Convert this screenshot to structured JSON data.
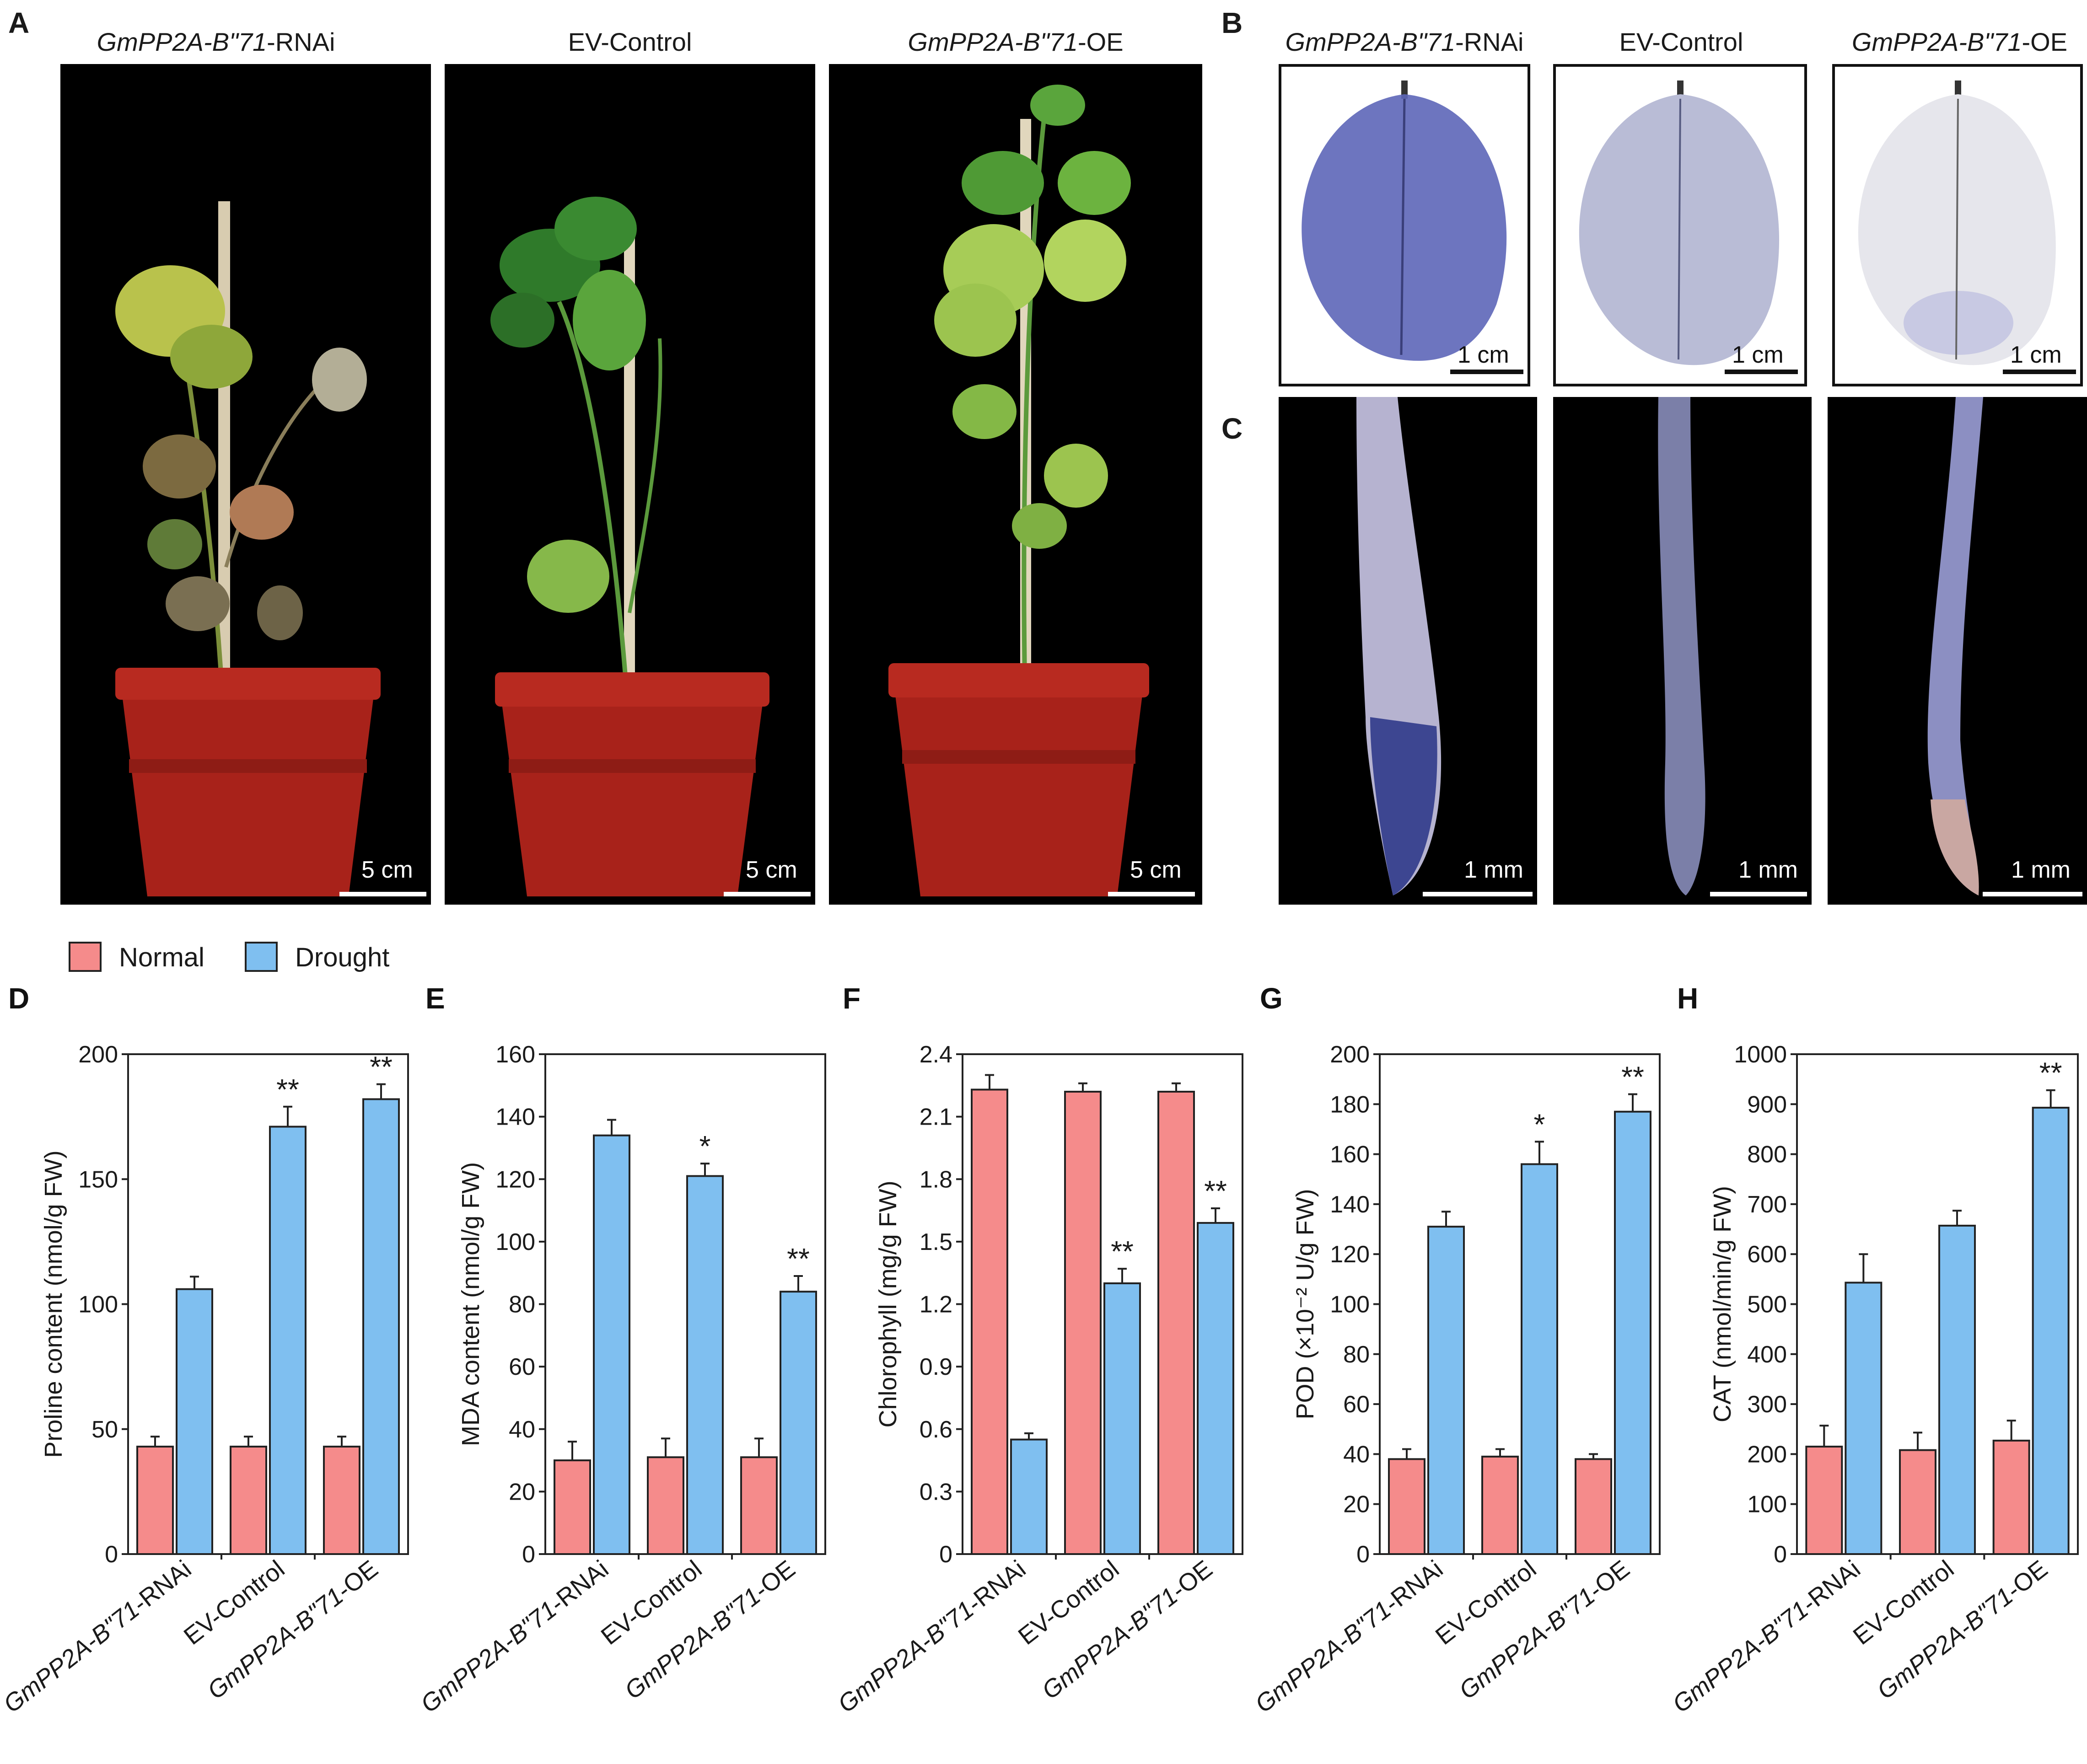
{
  "figure": {
    "photo_panels": [
      {
        "letter": "A",
        "titles": [
          "GmPP2A-B\"71-RNAi",
          "EV-Control",
          "GmPP2A-B\"71-OE"
        ],
        "scale_label": "5 cm"
      },
      {
        "letter": "B",
        "titles": [
          "GmPP2A-B\"71-RNAi",
          "EV-Control",
          "GmPP2A-B\"71-OE"
        ],
        "scale_label": "1 cm"
      },
      {
        "letter": "C",
        "scale_label": "1 mm"
      }
    ],
    "legend": {
      "normal": "Normal",
      "drought": "Drought"
    },
    "colors": {
      "normal": "#f58b8b",
      "drought": "#7fbff0",
      "pot": "#a8221a",
      "leaf_green": "#3f8f2f",
      "stain_blue": "#5d66b8"
    }
  },
  "chart_data": [
    {
      "letter": "D",
      "type": "bar",
      "ylabel": "Proline content (nmol/g FW)",
      "ylim": [
        0,
        200
      ],
      "yticks": [
        "0",
        "50",
        "100",
        "150",
        "200"
      ],
      "categories": [
        "GmPP2A-B\"71-RNAi",
        "EV-Control",
        "GmPP2A-B\"71-OE"
      ],
      "series": [
        {
          "name": "Normal",
          "values": [
            43,
            43,
            43
          ],
          "errors": [
            4,
            4,
            4
          ]
        },
        {
          "name": "Drought",
          "values": [
            106,
            171,
            182
          ],
          "errors": [
            5,
            8,
            6
          ]
        }
      ],
      "significance": [
        "",
        "**",
        "**"
      ]
    },
    {
      "letter": "E",
      "type": "bar",
      "ylabel": "MDA content (nmol/g FW)",
      "ylim": [
        0,
        160
      ],
      "yticks": [
        "0",
        "20",
        "40",
        "60",
        "80",
        "100",
        "120",
        "140",
        "160"
      ],
      "categories": [
        "GmPP2A-B\"71-RNAi",
        "EV-Control",
        "GmPP2A-B\"71-OE"
      ],
      "series": [
        {
          "name": "Normal",
          "values": [
            30,
            31,
            31
          ],
          "errors": [
            6,
            6,
            6
          ]
        },
        {
          "name": "Drought",
          "values": [
            134,
            121,
            84
          ],
          "errors": [
            5,
            4,
            5
          ]
        }
      ],
      "significance": [
        "",
        "*",
        "**"
      ]
    },
    {
      "letter": "F",
      "type": "bar",
      "ylabel": "Chlorophyll (mg/g FW)",
      "ylim": [
        0,
        2.4
      ],
      "yticks": [
        "0",
        "0.3",
        "0.6",
        "0.9",
        "1.2",
        "1.5",
        "1.8",
        "2.1",
        "2.4"
      ],
      "categories": [
        "GmPP2A-B\"71-RNAi",
        "EV-Control",
        "GmPP2A-B\"71-OE"
      ],
      "series": [
        {
          "name": "Normal",
          "values": [
            2.23,
            2.22,
            2.22
          ],
          "errors": [
            0.07,
            0.04,
            0.04
          ]
        },
        {
          "name": "Drought",
          "values": [
            0.55,
            1.3,
            1.59
          ],
          "errors": [
            0.03,
            0.07,
            0.07
          ]
        }
      ],
      "significance": [
        "",
        "**",
        "**"
      ]
    },
    {
      "letter": "G",
      "type": "bar",
      "ylabel": "POD (×10⁻² U/g FW)",
      "ylim": [
        0,
        200
      ],
      "yticks": [
        "0",
        "20",
        "40",
        "60",
        "80",
        "100",
        "120",
        "140",
        "160",
        "180",
        "200"
      ],
      "categories": [
        "GmPP2A-B\"71-RNAi",
        "EV-Control",
        "GmPP2A-B\"71-OE"
      ],
      "series": [
        {
          "name": "Normal",
          "values": [
            38,
            39,
            38
          ],
          "errors": [
            4,
            3,
            2
          ]
        },
        {
          "name": "Drought",
          "values": [
            131,
            156,
            177
          ],
          "errors": [
            6,
            9,
            7
          ]
        }
      ],
      "significance": [
        "",
        "*",
        "**"
      ]
    },
    {
      "letter": "H",
      "type": "bar",
      "ylabel": "CAT (nmol/min/g FW)",
      "ylim": [
        0,
        1000
      ],
      "yticks": [
        "0",
        "100",
        "200",
        "300",
        "400",
        "500",
        "600",
        "700",
        "800",
        "900",
        "1000"
      ],
      "categories": [
        "GmPP2A-B\"71-RNAi",
        "EV-Control",
        "GmPP2A-B\"71-OE"
      ],
      "series": [
        {
          "name": "Normal",
          "values": [
            215,
            208,
            227
          ],
          "errors": [
            42,
            35,
            40
          ]
        },
        {
          "name": "Drought",
          "values": [
            543,
            657,
            893
          ],
          "errors": [
            57,
            30,
            35
          ]
        }
      ],
      "significance": [
        "",
        "",
        "**"
      ]
    }
  ]
}
